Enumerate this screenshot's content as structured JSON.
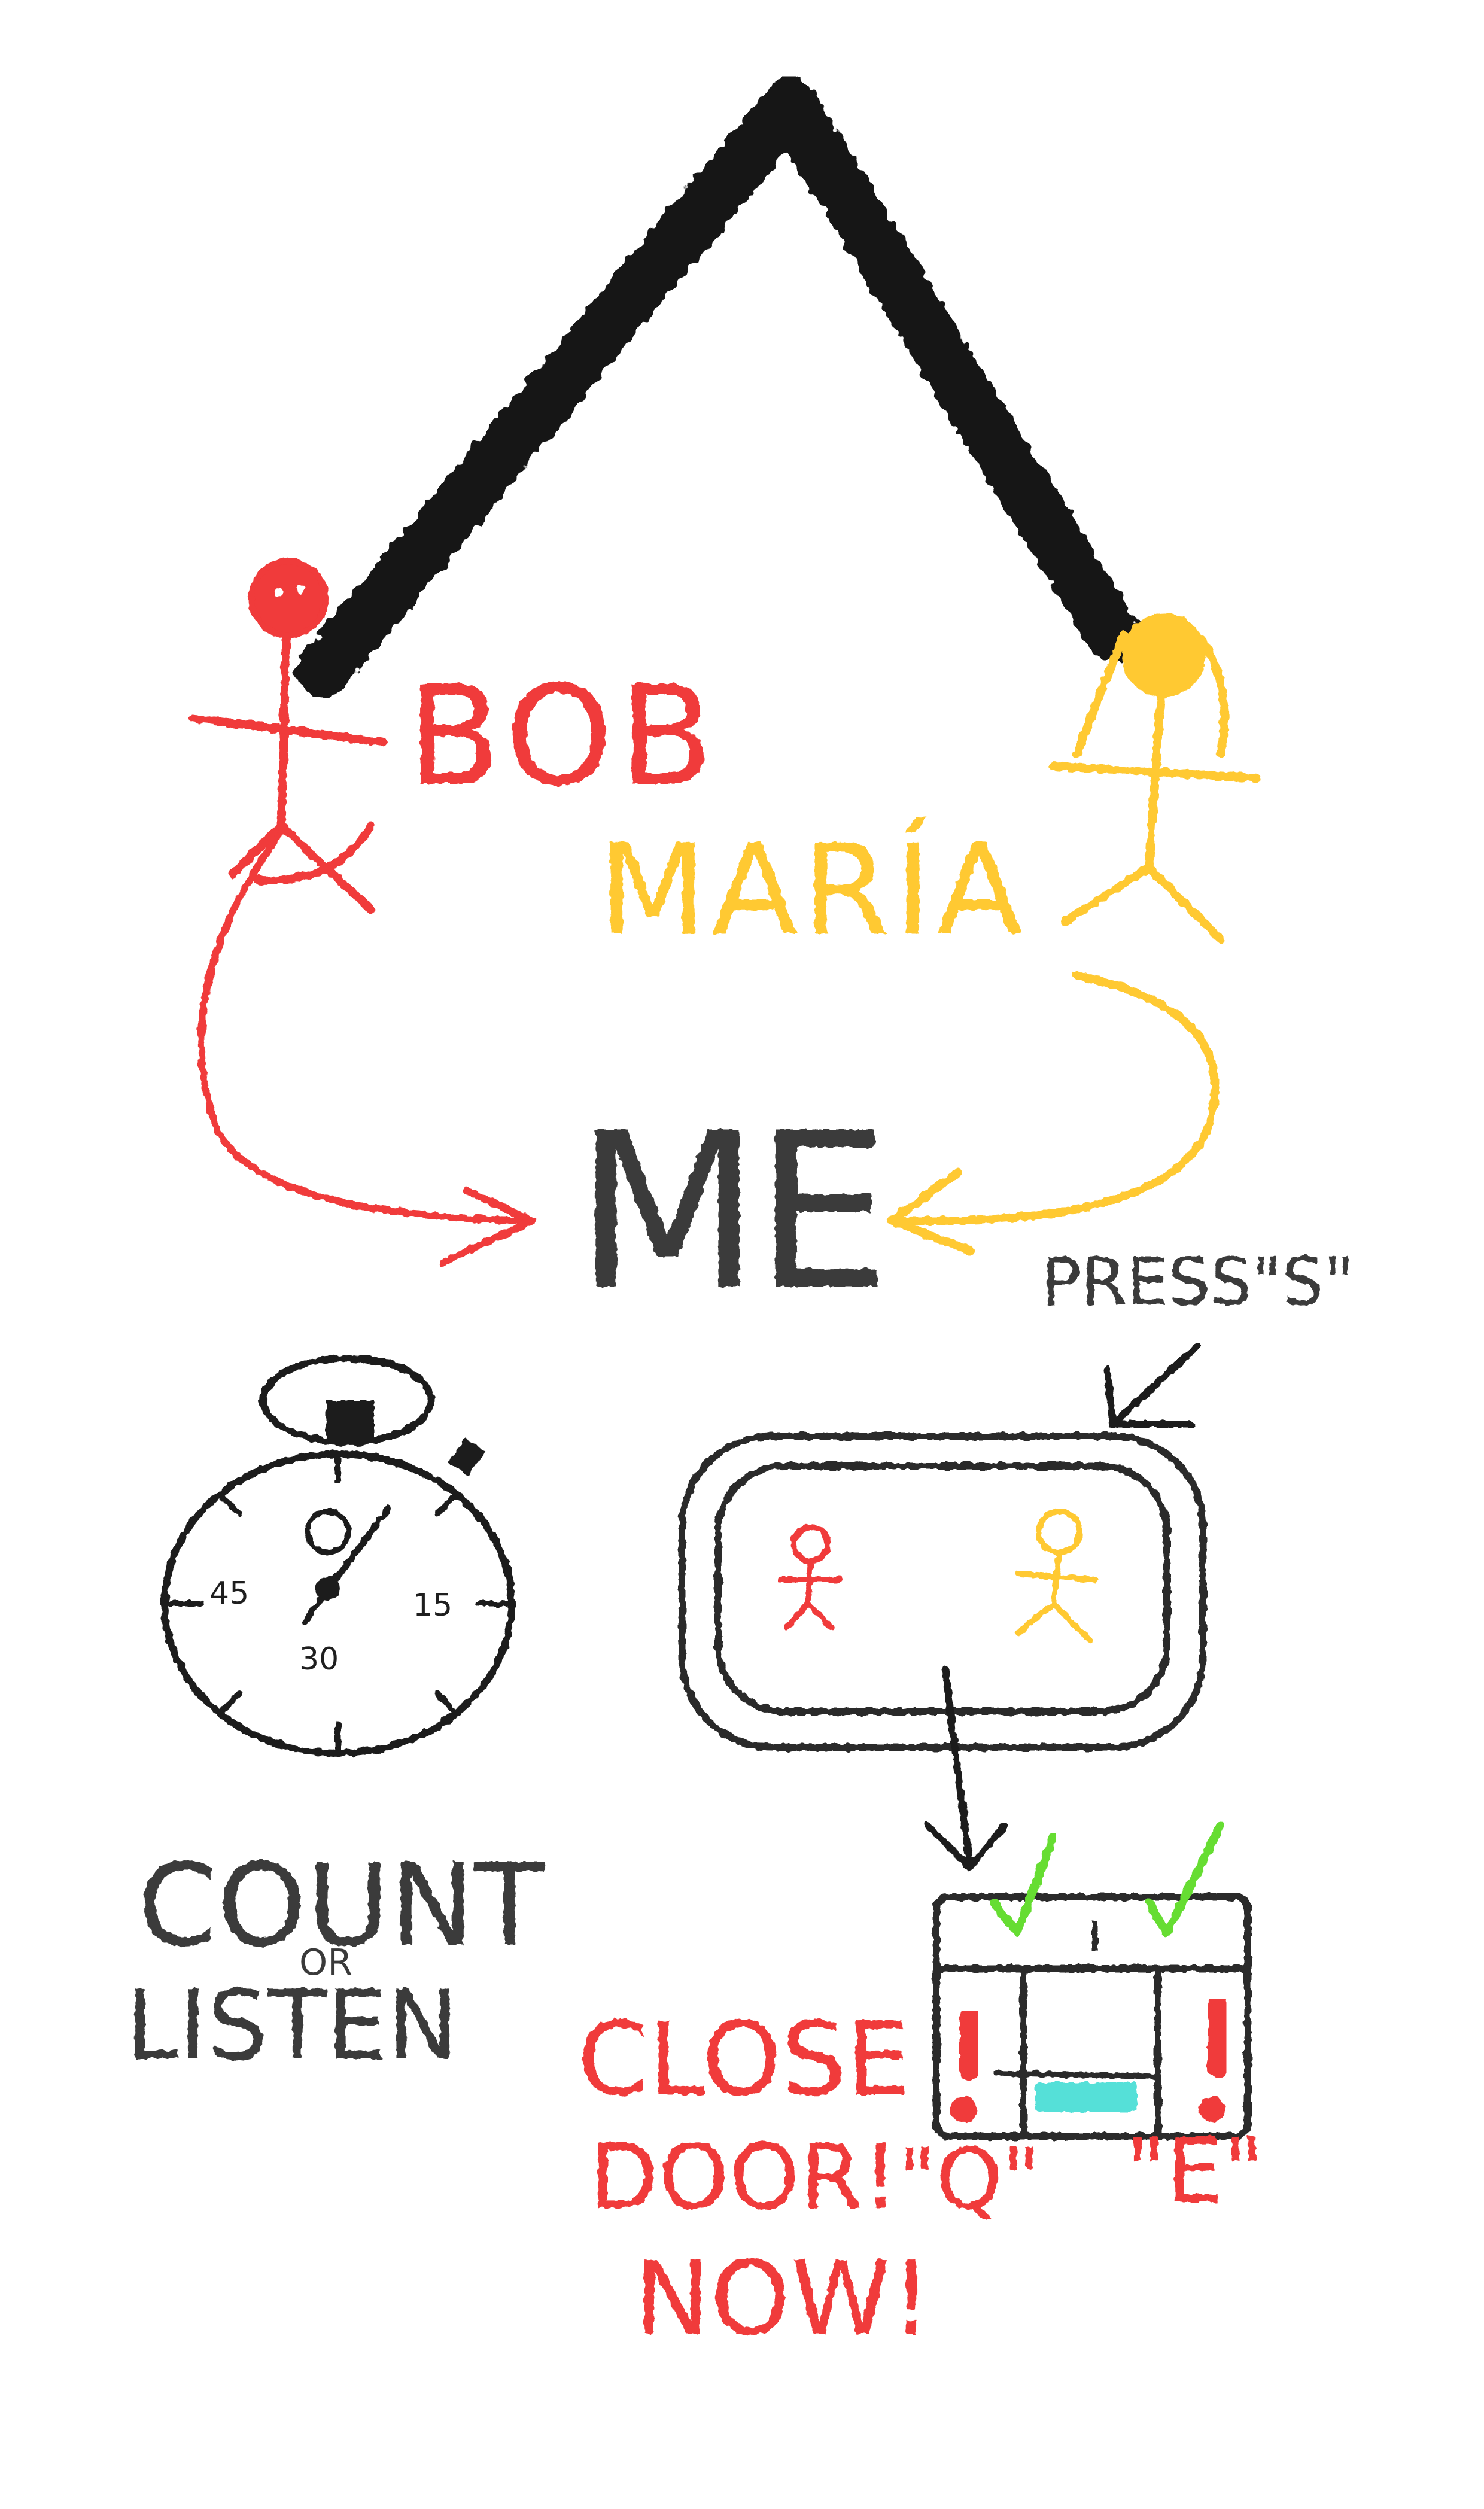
{
  "colors": {
    "red": "#f03a3a",
    "yellow": "#ffc933",
    "black": "#1e1e1e",
    "gray": "#3a3a3a",
    "green": "#66dd33",
    "cyan": "#55e0d8",
    "white": "#ffffff"
  },
  "labels": {
    "bob": "BOB",
    "maria": "MARÍA",
    "me": "ME",
    "press_s": "PRESS\"S\"",
    "count": "COUNT",
    "or": "OR",
    "listen": "LISTEN",
    "close": "CLOSE",
    "door": "DOOR!",
    "key_q": "\"Q\"",
    "key_e": "\"E\"",
    "now": "NOW!"
  },
  "stopwatch": {
    "marks": [
      "45",
      "15",
      "30"
    ]
  },
  "monitor": {
    "figures": [
      "red-figure",
      "yellow-figure"
    ]
  },
  "door": {
    "checks": 2,
    "alerts": 2
  }
}
